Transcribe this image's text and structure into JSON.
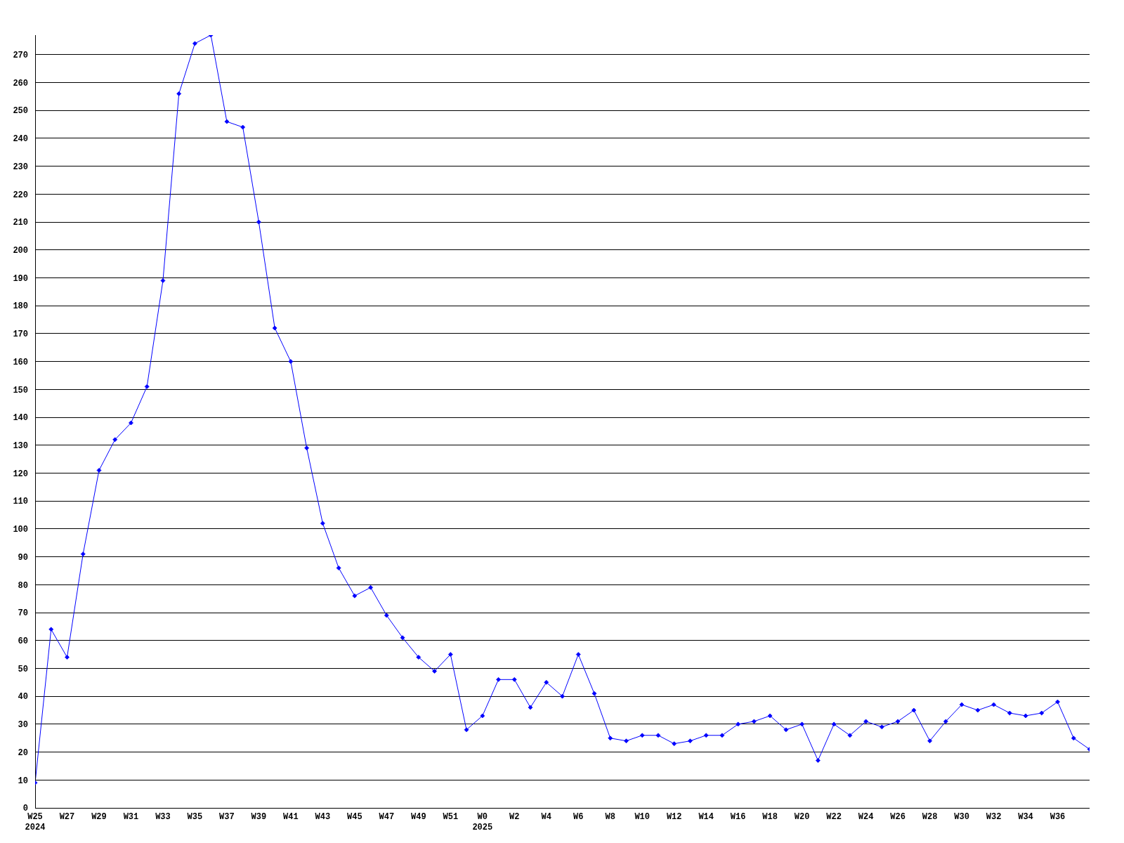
{
  "chart_data": {
    "type": "line",
    "categories": [
      "W25\n2024",
      null,
      "W27",
      null,
      "W29",
      null,
      "W31",
      null,
      "W33",
      null,
      "W35",
      null,
      "W37",
      null,
      "W39",
      null,
      "W41",
      null,
      "W43",
      null,
      "W45",
      null,
      "W47",
      null,
      "W49",
      null,
      "W51",
      null,
      "W0\n2025",
      null,
      "W2",
      null,
      "W4",
      null,
      "W6",
      null,
      "W8",
      null,
      "W10",
      null,
      "W12",
      null,
      "W14",
      null,
      "W16",
      null,
      "W18",
      null,
      "W20",
      null,
      "W22",
      null,
      "W24",
      null,
      "W26",
      null,
      "W28",
      null,
      "W30",
      null,
      "W32",
      null,
      "W34",
      null,
      "W36",
      null,
      null
    ],
    "series": [
      {
        "color": "#0000ff",
        "values": [
          9,
          64,
          54,
          91,
          121,
          132,
          138,
          151,
          189,
          256,
          274,
          277,
          246,
          244,
          210,
          172,
          160,
          129,
          102,
          86,
          76,
          79,
          69,
          61,
          54,
          49,
          55,
          28,
          33,
          46,
          46,
          36,
          45,
          40,
          55,
          41,
          25,
          24,
          26,
          26,
          23,
          24,
          26,
          26,
          30,
          31,
          33,
          28,
          30,
          17,
          30,
          26,
          31,
          29,
          31,
          35,
          24,
          31,
          37,
          35,
          37,
          34,
          33,
          34,
          38,
          25,
          21
        ]
      }
    ],
    "ylim": [
      0,
      277
    ],
    "yticks": [
      0,
      10,
      20,
      30,
      40,
      50,
      60,
      70,
      80,
      90,
      100,
      110,
      120,
      130,
      140,
      150,
      160,
      170,
      180,
      190,
      200,
      210,
      220,
      230,
      240,
      250,
      260,
      270
    ],
    "grid": "y",
    "marker": "diamond",
    "line_style": "solid"
  }
}
